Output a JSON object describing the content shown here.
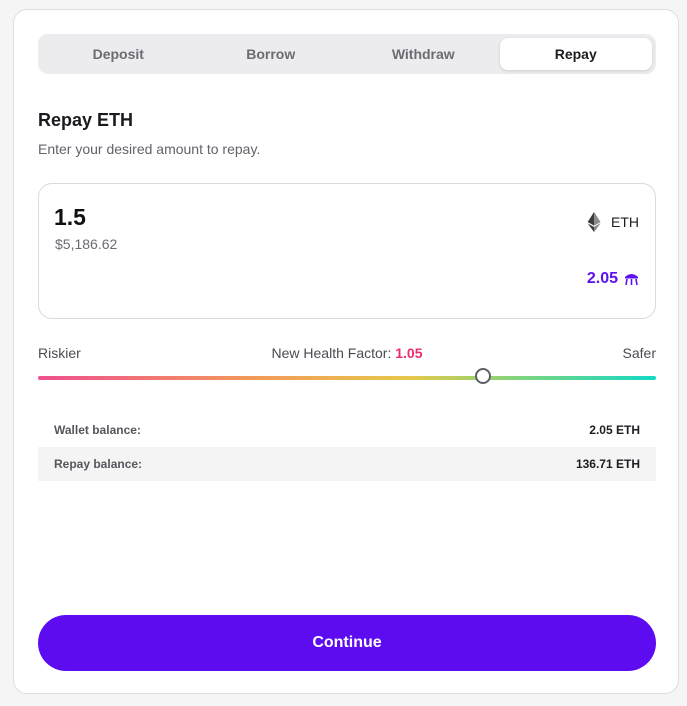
{
  "tabs": [
    {
      "label": "Deposit",
      "active": false
    },
    {
      "label": "Borrow",
      "active": false
    },
    {
      "label": "Withdraw",
      "active": false
    },
    {
      "label": "Repay",
      "active": true
    }
  ],
  "header": {
    "title": "Repay ETH",
    "subtitle": "Enter your desired amount to repay."
  },
  "amount": {
    "value": "1.5",
    "usd_value": "$5,186.62",
    "token_symbol": "ETH",
    "token_icon": "ethereum-icon",
    "max_value": "2.05",
    "max_icon": "max-icon"
  },
  "health_factor": {
    "left_label": "Riskier",
    "center_label": "New Health Factor:",
    "value": "1.05",
    "right_label": "Safer",
    "slider_position": 0.72
  },
  "balances": [
    {
      "label": "Wallet balance:",
      "value": "2.05 ETH"
    },
    {
      "label": "Repay balance:",
      "value": "136.71 ETH"
    }
  ],
  "actions": {
    "continue_label": "Continue"
  },
  "colors": {
    "accent": "#5d0cf2",
    "health_value": "#ec2c6a",
    "max_text": "#5b12f0"
  }
}
